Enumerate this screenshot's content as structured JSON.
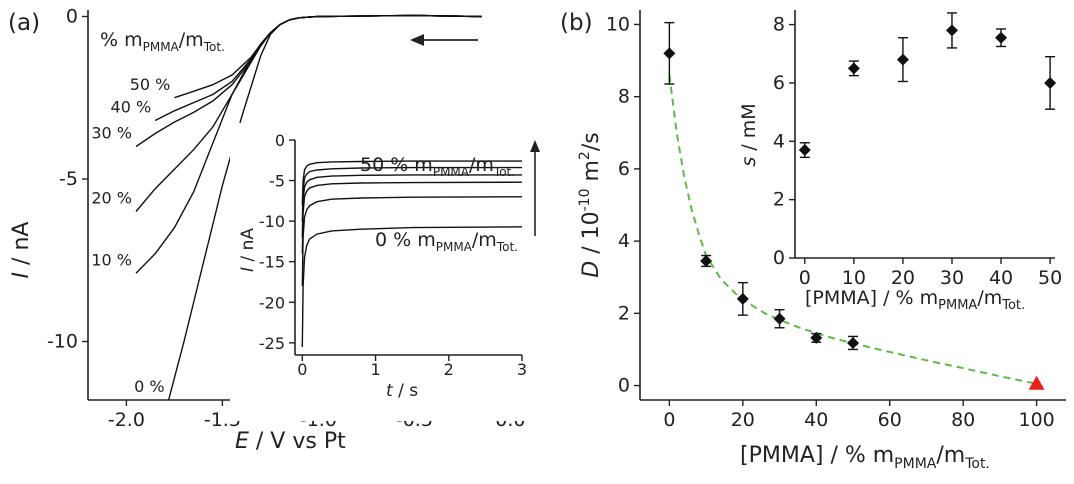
{
  "chart_data": [
    {
      "panel": "(a)",
      "type": "line",
      "xlabel_italic": "E",
      "xlabel_rest": " / V vs Pt",
      "ylabel_italic": "I",
      "ylabel_rest": " / nA",
      "xlim": [
        -2.2,
        0.05
      ],
      "ylim": [
        -11.8,
        0.2
      ],
      "xticks": [
        -2.0,
        -1.5,
        -1.0,
        -0.5,
        0.0
      ],
      "xtick_labels": [
        "-2.0",
        "-1.5",
        "-1.0",
        "-0.5",
        "0.0"
      ],
      "yticks": [
        0,
        -5,
        -10
      ],
      "ytick_labels": [
        "0",
        "-5",
        "-10"
      ],
      "legend_title": "% m",
      "legend_title_sub1": "PMMA",
      "legend_title_mid": "/m",
      "legend_title_sub2": "Tot.",
      "scan_direction": "arrow pointing left (toward negative potential)",
      "series": [
        {
          "name": "0 %",
          "x": [
            -1.78,
            -1.7,
            -1.6,
            -1.5,
            -1.4,
            -1.3,
            -1.25,
            -1.2,
            -1.15,
            -1.1,
            -1.05,
            -1.0,
            -0.5,
            -0.15
          ],
          "y": [
            -11.8,
            -10.0,
            -7.6,
            -5.2,
            -3.1,
            -1.2,
            -0.55,
            -0.25,
            -0.1,
            -0.04,
            -0.02,
            0,
            0.03,
            0
          ]
        },
        {
          "name": "10 %",
          "x": [
            -1.95,
            -1.85,
            -1.75,
            -1.65,
            -1.55,
            -1.45,
            -1.35,
            -1.3,
            -1.25,
            -1.2,
            -1.15,
            -1.1,
            -1.05,
            -1.0,
            -0.5,
            -0.15
          ],
          "y": [
            -7.9,
            -7.3,
            -6.5,
            -5.4,
            -3.9,
            -2.4,
            -1.3,
            -0.85,
            -0.5,
            -0.25,
            -0.1,
            -0.04,
            -0.02,
            0,
            0.03,
            0
          ]
        },
        {
          "name": "20 %",
          "x": [
            -1.95,
            -1.85,
            -1.75,
            -1.65,
            -1.55,
            -1.45,
            -1.35,
            -1.3,
            -1.25,
            -1.2,
            -1.15,
            -1.1,
            -1.05,
            -1.0,
            -0.5,
            -0.15
          ],
          "y": [
            -6.0,
            -5.3,
            -4.7,
            -4.1,
            -3.4,
            -2.4,
            -1.4,
            -0.9,
            -0.5,
            -0.25,
            -0.1,
            -0.04,
            -0.02,
            0,
            0.03,
            0
          ]
        },
        {
          "name": "30 %",
          "x": [
            -1.95,
            -1.85,
            -1.75,
            -1.65,
            -1.55,
            -1.45,
            -1.35,
            -1.3,
            -1.25,
            -1.2,
            -1.15,
            -1.1,
            -1.05,
            -1.0,
            -0.5,
            -0.15
          ],
          "y": [
            -4.0,
            -3.6,
            -3.25,
            -2.95,
            -2.6,
            -2.1,
            -1.35,
            -0.9,
            -0.5,
            -0.25,
            -0.1,
            -0.04,
            -0.02,
            0,
            0.03,
            0
          ]
        },
        {
          "name": "40 %",
          "x": [
            -1.85,
            -1.75,
            -1.65,
            -1.55,
            -1.45,
            -1.35,
            -1.3,
            -1.25,
            -1.2,
            -1.15,
            -1.1,
            -1.05,
            -1.0,
            -0.5,
            -0.15
          ],
          "y": [
            -3.2,
            -2.9,
            -2.65,
            -2.4,
            -2.0,
            -1.3,
            -0.85,
            -0.5,
            -0.25,
            -0.1,
            -0.04,
            -0.02,
            0,
            0.03,
            0
          ]
        },
        {
          "name": "50 %",
          "x": [
            -1.75,
            -1.65,
            -1.55,
            -1.45,
            -1.35,
            -1.3,
            -1.25,
            -1.2,
            -1.15,
            -1.1,
            -1.05,
            -1.0,
            -0.5,
            -0.15
          ],
          "y": [
            -2.5,
            -2.3,
            -2.1,
            -1.8,
            -1.25,
            -0.85,
            -0.5,
            -0.25,
            -0.1,
            -0.04,
            -0.02,
            0,
            0.03,
            0
          ]
        }
      ],
      "inset": {
        "type": "line",
        "xlabel_italic": "t",
        "xlabel_rest": " / s",
        "ylabel_italic": "I",
        "ylabel_rest": " / nA",
        "xlim": [
          -0.1,
          3.0
        ],
        "ylim": [
          -26.5,
          0
        ],
        "xticks": [
          0,
          1,
          2,
          3
        ],
        "xtick_labels": [
          "0",
          "1",
          "2",
          "3"
        ],
        "yticks": [
          0,
          -5,
          -10,
          -15,
          -20,
          -25
        ],
        "ytick_labels": [
          "0",
          "-5",
          "-10",
          "-15",
          "-20",
          "-25"
        ],
        "top_label": "50 % m",
        "bottom_label": "0 % m",
        "label_sub1": "PMMA",
        "label_mid": "/m",
        "label_sub2": "Tot.",
        "series": [
          {
            "name": "0 %",
            "steady": -10.7,
            "x": [
              0.0,
              0.01,
              0.03,
              0.06,
              0.1,
              0.2,
              0.4,
              0.8,
              1.5,
              3.0
            ],
            "y": [
              -25.5,
              -18,
              -14.5,
              -13,
              -12.2,
              -11.6,
              -11.2,
              -11.0,
              -10.8,
              -10.7
            ]
          },
          {
            "name": "10 %",
            "steady": -7.0,
            "x": [
              0.0,
              0.01,
              0.03,
              0.06,
              0.1,
              0.2,
              0.4,
              0.8,
              1.5,
              3.0
            ],
            "y": [
              -18,
              -12,
              -9.5,
              -8.6,
              -8.1,
              -7.6,
              -7.3,
              -7.15,
              -7.05,
              -7.0
            ]
          },
          {
            "name": "20 %",
            "steady": -5.2,
            "x": [
              0.0,
              0.01,
              0.03,
              0.06,
              0.1,
              0.2,
              0.4,
              0.8,
              1.5,
              3.0
            ],
            "y": [
              -14,
              -9,
              -7,
              -6.3,
              -5.9,
              -5.6,
              -5.4,
              -5.3,
              -5.25,
              -5.2
            ]
          },
          {
            "name": "30 %",
            "steady": -4.3,
            "x": [
              0.0,
              0.01,
              0.03,
              0.06,
              0.1,
              0.2,
              0.4,
              0.8,
              1.5,
              3.0
            ],
            "y": [
              -12,
              -7.5,
              -5.8,
              -5.2,
              -4.9,
              -4.6,
              -4.45,
              -4.35,
              -4.3,
              -4.3
            ]
          },
          {
            "name": "40 %",
            "steady": -3.4,
            "x": [
              0.0,
              0.01,
              0.03,
              0.06,
              0.1,
              0.2,
              0.4,
              0.8,
              1.5,
              3.0
            ],
            "y": [
              -10,
              -6.2,
              -4.7,
              -4.2,
              -3.9,
              -3.7,
              -3.55,
              -3.45,
              -3.4,
              -3.4
            ]
          },
          {
            "name": "50 %",
            "steady": -2.6,
            "x": [
              0.0,
              0.01,
              0.03,
              0.06,
              0.1,
              0.2,
              0.4,
              0.8,
              1.5,
              3.0
            ],
            "y": [
              -8,
              -5,
              -3.7,
              -3.2,
              -3.0,
              -2.8,
              -2.7,
              -2.65,
              -2.6,
              -2.6
            ]
          }
        ]
      }
    },
    {
      "panel": "(b)",
      "type": "scatter",
      "xlabel_main": "[PMMA] / % m",
      "xlabel_sub1": "PMMA",
      "xlabel_mid": "/m",
      "xlabel_sub2": "Tot.",
      "ylabel_italic": "D",
      "ylabel_rest": " / 10",
      "ylabel_exp": "-10",
      "ylabel_unit": " m",
      "ylabel_unit_exp": "2",
      "ylabel_end": "/s",
      "xlim": [
        -8,
        108
      ],
      "ylim": [
        -0.4,
        10.4
      ],
      "xticks": [
        0,
        20,
        40,
        60,
        80,
        100
      ],
      "xtick_labels": [
        "0",
        "20",
        "40",
        "60",
        "80",
        "100"
      ],
      "yticks": [
        0,
        2,
        4,
        6,
        8,
        10
      ],
      "ytick_labels": [
        "0",
        "2",
        "4",
        "6",
        "8",
        "10"
      ],
      "series": [
        {
          "x": [
            0,
            10,
            20,
            30,
            40,
            50
          ],
          "y": [
            9.2,
            3.45,
            2.4,
            1.85,
            1.32,
            1.18
          ],
          "err": [
            0.85,
            0.15,
            0.45,
            0.25,
            0.12,
            0.18
          ],
          "marker": "diamond",
          "color": "#111111"
        }
      ],
      "extra_point": {
        "x": 100,
        "y": 0.05,
        "marker": "triangle",
        "color": "#e8211b"
      },
      "fit_line": {
        "color": "#5fb946",
        "style": "dashed",
        "x": [
          0,
          2,
          4,
          6,
          8,
          10,
          14,
          18,
          22,
          26,
          30,
          35,
          40,
          45,
          50,
          60,
          70,
          80,
          90,
          100
        ],
        "y": [
          8.6,
          7.0,
          5.8,
          4.9,
          4.2,
          3.6,
          2.95,
          2.55,
          2.25,
          2.0,
          1.82,
          1.62,
          1.45,
          1.3,
          1.17,
          0.93,
          0.7,
          0.48,
          0.26,
          0.05
        ]
      },
      "inset": {
        "type": "scatter",
        "xlabel_main": "[PMMA] / % m",
        "xlabel_sub1": "PMMA",
        "xlabel_mid": "/m",
        "xlabel_sub2": "Tot.",
        "ylabel_italic": "s",
        "ylabel_rest": " / mM",
        "xlim": [
          -2,
          51
        ],
        "ylim": [
          0,
          8.5
        ],
        "xticks": [
          0,
          10,
          20,
          30,
          40,
          50
        ],
        "xtick_labels": [
          "0",
          "10",
          "20",
          "30",
          "40",
          "50"
        ],
        "yticks": [
          0,
          2,
          4,
          6,
          8
        ],
        "ytick_labels": [
          "0",
          "2",
          "4",
          "6",
          "8"
        ],
        "series": [
          {
            "x": [
              0,
              10,
              20,
              30,
              40,
              50
            ],
            "y": [
              3.7,
              6.5,
              6.8,
              7.8,
              7.55,
              6.0
            ],
            "err": [
              0.25,
              0.25,
              0.75,
              0.6,
              0.3,
              0.9
            ],
            "marker": "diamond",
            "color": "#111111"
          }
        ]
      }
    }
  ]
}
